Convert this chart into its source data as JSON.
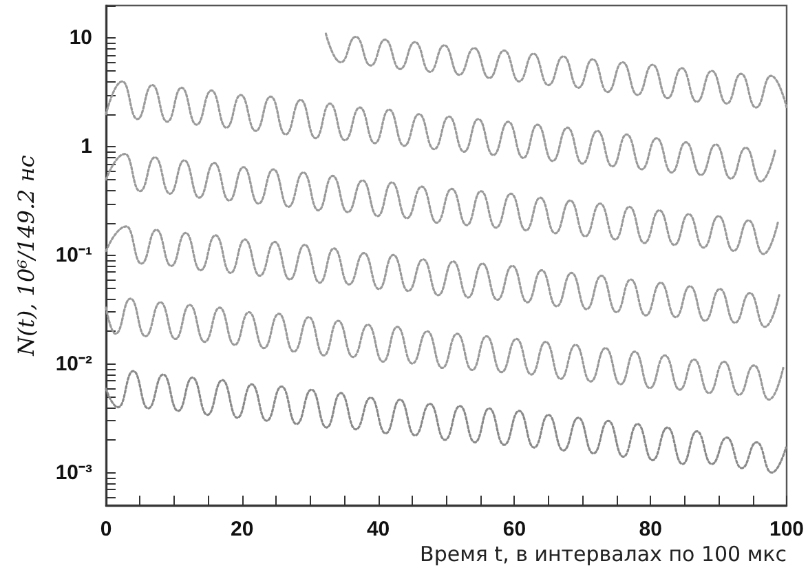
{
  "chart_data": {
    "type": "line",
    "xlabel": "Время t, в интервалах по 100 мкс",
    "ylabel": "N(t), 10⁶/149.2 нс",
    "log": "y",
    "grid": false,
    "legend": false,
    "marker": "none",
    "line_style": "dotted",
    "xlim": [
      0,
      100
    ],
    "xticks": [
      0,
      {
        "value": 5,
        "label": null
      },
      {
        "value": 10,
        "label": null
      },
      {
        "value": 15,
        "label": null
      },
      20,
      {
        "value": 25,
        "label": null
      },
      {
        "value": 30,
        "label": null
      },
      {
        "value": 35,
        "label": null
      },
      40,
      {
        "value": 45,
        "label": null
      },
      {
        "value": 50,
        "label": null
      },
      {
        "value": 55,
        "label": null
      },
      60,
      {
        "value": 65,
        "label": null
      },
      {
        "value": 70,
        "label": null
      },
      {
        "value": 75,
        "label": null
      },
      80,
      {
        "value": 85,
        "label": null
      },
      {
        "value": 90,
        "label": null
      },
      {
        "value": 95,
        "label": null
      },
      100
    ],
    "ylim": [
      0.0005,
      20
    ],
    "yticks": [
      {
        "value": 0.0005,
        "label": null
      },
      {
        "value": 0.0006,
        "label": null
      },
      {
        "value": 0.0007,
        "label": null
      },
      {
        "value": 0.0008,
        "label": null
      },
      {
        "value": 0.0009,
        "label": null
      },
      {
        "value": 0.001,
        "label": "10⁻³"
      },
      {
        "value": 0.002,
        "label": null
      },
      {
        "value": 0.003,
        "label": null
      },
      {
        "value": 0.004,
        "label": null
      },
      {
        "value": 0.005,
        "label": null
      },
      {
        "value": 0.006,
        "label": null
      },
      {
        "value": 0.007,
        "label": null
      },
      {
        "value": 0.008,
        "label": null
      },
      {
        "value": 0.009,
        "label": null
      },
      {
        "value": 0.01,
        "label": "10⁻²"
      },
      {
        "value": 0.02,
        "label": null
      },
      {
        "value": 0.03,
        "label": null
      },
      {
        "value": 0.04,
        "label": null
      },
      {
        "value": 0.05,
        "label": null
      },
      {
        "value": 0.06,
        "label": null
      },
      {
        "value": 0.07,
        "label": null
      },
      {
        "value": 0.08,
        "label": null
      },
      {
        "value": 0.09,
        "label": null
      },
      {
        "value": 0.1,
        "label": "10⁻¹"
      },
      {
        "value": 0.2,
        "label": null
      },
      {
        "value": 0.3,
        "label": null
      },
      {
        "value": 0.4,
        "label": null
      },
      {
        "value": 0.5,
        "label": null
      },
      {
        "value": 0.6,
        "label": null
      },
      {
        "value": 0.7,
        "label": null
      },
      {
        "value": 0.8,
        "label": null
      },
      {
        "value": 0.9,
        "label": null
      },
      1,
      {
        "value": 2,
        "label": null
      },
      {
        "value": 3,
        "label": null
      },
      {
        "value": 4,
        "label": null
      },
      {
        "value": 5,
        "label": null
      },
      {
        "value": 6,
        "label": null
      },
      {
        "value": 7,
        "label": null
      },
      {
        "value": 8,
        "label": null
      },
      {
        "value": 9,
        "label": null
      },
      10,
      {
        "value": 20,
        "label": null
      }
    ],
    "series": [
      {
        "color": "#9a9a9a",
        "x": [
          32.3,
          34.5,
          36.7,
          38.9,
          41.0,
          43.2,
          45.4,
          47.6,
          49.7,
          51.9,
          54.1,
          56.3,
          58.5,
          60.7,
          62.8,
          65.0,
          67.2,
          69.4,
          71.5,
          73.7,
          75.9,
          78.1,
          80.3,
          82.5,
          84.6,
          86.8,
          89.0,
          91.2,
          93.3,
          95.5,
          97.7,
          100
        ],
        "values": [
          11,
          6.0,
          10.3,
          5.6,
          9.7,
          5.2,
          9.2,
          4.9,
          8.6,
          4.6,
          8.1,
          4.3,
          7.7,
          4.0,
          7.2,
          3.7,
          6.8,
          3.5,
          6.4,
          3.2,
          6.0,
          3.0,
          5.7,
          2.8,
          5.3,
          2.6,
          5.0,
          2.5,
          4.7,
          2.3,
          4.5,
          2.3
        ]
      },
      {
        "color": "#9a9a9a",
        "x": [
          0,
          2.4,
          4.6,
          6.8,
          9.0,
          11.1,
          13.3,
          15.5,
          17.7,
          19.8,
          22.0,
          24.2,
          26.4,
          28.6,
          30.8,
          32.9,
          35.1,
          37.3,
          39.5,
          41.6,
          43.8,
          46.0,
          48.2,
          50.4,
          52.6,
          54.7,
          56.9,
          59.1,
          61.3,
          63.4,
          65.6,
          67.8,
          70.0,
          72.2,
          74.4,
          76.5,
          78.7,
          80.9,
          83.1,
          85.2,
          87.4,
          89.6,
          91.8,
          94.0,
          96.2,
          98.3
        ],
        "values": [
          2.0,
          4.0,
          1.8,
          3.7,
          1.7,
          3.5,
          1.6,
          3.3,
          1.5,
          3.0,
          1.4,
          2.9,
          1.3,
          2.7,
          1.2,
          2.5,
          1.15,
          2.3,
          1.08,
          2.2,
          1.02,
          2.0,
          0.95,
          1.9,
          0.9,
          1.8,
          0.84,
          1.7,
          0.79,
          1.6,
          0.74,
          1.5,
          0.7,
          1.4,
          0.66,
          1.3,
          0.62,
          1.2,
          0.58,
          1.1,
          0.55,
          1.05,
          0.51,
          0.98,
          0.48,
          0.92
        ]
      },
      {
        "color": "#9a9a9a",
        "x": [
          0,
          2.8,
          5.0,
          7.2,
          9.4,
          11.5,
          13.7,
          15.9,
          18.1,
          20.2,
          22.4,
          24.6,
          26.8,
          29.0,
          31.2,
          33.3,
          35.5,
          37.7,
          39.9,
          42.0,
          44.2,
          46.4,
          48.6,
          50.8,
          53.0,
          55.1,
          57.3,
          59.5,
          61.7,
          63.8,
          66.0,
          68.2,
          70.4,
          72.6,
          74.8,
          76.9,
          79.1,
          81.3,
          83.5,
          85.6,
          87.8,
          90.0,
          92.2,
          94.4,
          96.6,
          98.7
        ],
        "values": [
          0.5,
          0.86,
          0.39,
          0.8,
          0.37,
          0.75,
          0.34,
          0.71,
          0.32,
          0.65,
          0.3,
          0.62,
          0.28,
          0.58,
          0.26,
          0.54,
          0.25,
          0.49,
          0.23,
          0.47,
          0.22,
          0.43,
          0.2,
          0.41,
          0.19,
          0.39,
          0.18,
          0.37,
          0.17,
          0.34,
          0.16,
          0.32,
          0.15,
          0.3,
          0.14,
          0.28,
          0.13,
          0.26,
          0.125,
          0.24,
          0.118,
          0.23,
          0.11,
          0.21,
          0.103,
          0.2
        ]
      },
      {
        "color": "#9a9a9a",
        "x": [
          0,
          3.0,
          5.2,
          7.4,
          9.6,
          11.7,
          13.9,
          16.1,
          18.3,
          20.4,
          22.6,
          24.8,
          27.0,
          29.2,
          31.4,
          33.5,
          35.7,
          37.9,
          40.1,
          42.2,
          44.4,
          46.6,
          48.8,
          51.0,
          53.2,
          55.3,
          57.5,
          59.7,
          61.9,
          64.0,
          66.2,
          68.4,
          70.6,
          72.8,
          75.0,
          77.1,
          79.3,
          81.5,
          83.7,
          85.8,
          88.0,
          90.2,
          92.4,
          94.6,
          96.8,
          98.9
        ],
        "values": [
          0.11,
          0.185,
          0.084,
          0.172,
          0.08,
          0.161,
          0.073,
          0.153,
          0.069,
          0.14,
          0.065,
          0.133,
          0.06,
          0.125,
          0.056,
          0.116,
          0.054,
          0.105,
          0.049,
          0.101,
          0.047,
          0.092,
          0.043,
          0.088,
          0.041,
          0.084,
          0.039,
          0.08,
          0.037,
          0.073,
          0.034,
          0.069,
          0.032,
          0.065,
          0.03,
          0.06,
          0.028,
          0.056,
          0.027,
          0.052,
          0.025,
          0.049,
          0.024,
          0.045,
          0.022,
          0.043
        ]
      },
      {
        "color": "#9a9a9a",
        "x": [
          0,
          1.4,
          3.6,
          5.8,
          8.0,
          10.2,
          12.3,
          14.5,
          16.7,
          18.9,
          21.0,
          23.2,
          25.4,
          27.6,
          29.8,
          32.0,
          34.1,
          36.3,
          38.5,
          40.7,
          42.8,
          45.0,
          47.2,
          49.4,
          51.6,
          53.8,
          55.9,
          58.1,
          60.3,
          62.5,
          64.6,
          66.8,
          69.0,
          71.2,
          73.4,
          75.6,
          77.7,
          79.9,
          82.1,
          84.3,
          86.4,
          88.6,
          90.8,
          93.0,
          95.2,
          97.4,
          99.5
        ],
        "values": [
          0.033,
          0.019,
          0.04,
          0.018,
          0.037,
          0.017,
          0.035,
          0.016,
          0.033,
          0.015,
          0.03,
          0.014,
          0.029,
          0.013,
          0.027,
          0.012,
          0.025,
          0.0116,
          0.023,
          0.0105,
          0.022,
          0.0101,
          0.02,
          0.0092,
          0.019,
          0.0088,
          0.018,
          0.0084,
          0.017,
          0.008,
          0.016,
          0.0073,
          0.015,
          0.0069,
          0.014,
          0.0065,
          0.013,
          0.006,
          0.012,
          0.0058,
          0.011,
          0.0054,
          0.0105,
          0.0052,
          0.0097,
          0.0047,
          0.0092
        ]
      },
      {
        "color": "#8a8a8a",
        "x": [
          0,
          1.8,
          4.0,
          6.2,
          8.4,
          10.6,
          12.7,
          14.9,
          17.1,
          19.3,
          21.4,
          23.6,
          25.8,
          28.0,
          30.2,
          32.4,
          34.5,
          36.7,
          38.9,
          41.1,
          43.2,
          45.4,
          47.6,
          49.8,
          52.0,
          54.2,
          56.3,
          58.5,
          60.7,
          62.9,
          65.0,
          67.2,
          69.4,
          71.6,
          73.8,
          76.0,
          78.1,
          80.3,
          82.5,
          84.7,
          86.8,
          89.0,
          91.2,
          93.4,
          95.6,
          97.8,
          99.9
        ],
        "values": [
          0.0059,
          0.004,
          0.0086,
          0.0039,
          0.008,
          0.0037,
          0.0075,
          0.0034,
          0.0071,
          0.0032,
          0.0065,
          0.003,
          0.0062,
          0.0028,
          0.0058,
          0.0026,
          0.0054,
          0.0025,
          0.0049,
          0.0023,
          0.0047,
          0.0022,
          0.0043,
          0.002,
          0.0041,
          0.0019,
          0.0039,
          0.0018,
          0.0037,
          0.0017,
          0.0034,
          0.0016,
          0.0032,
          0.0015,
          0.003,
          0.0014,
          0.0028,
          0.0013,
          0.0026,
          0.0012,
          0.0024,
          0.0012,
          0.0021,
          0.0011,
          0.0019,
          0.001,
          0.0017
        ]
      }
    ]
  }
}
